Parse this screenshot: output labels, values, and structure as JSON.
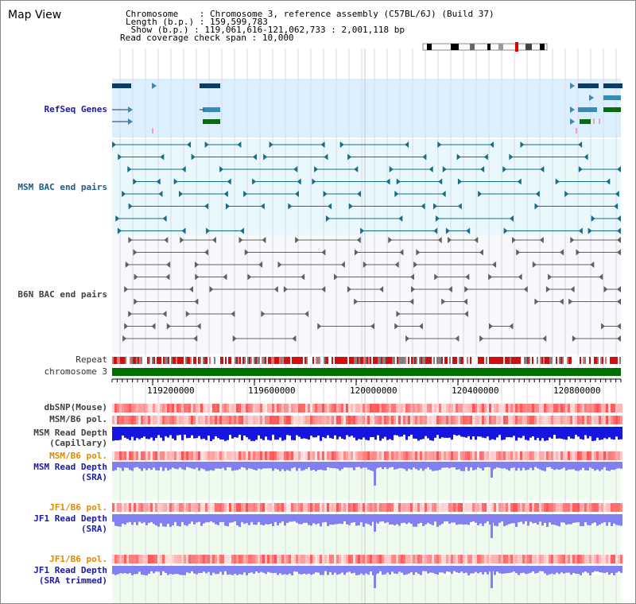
{
  "header": {
    "title": "Map View",
    "rows": [
      {
        "label": "Chromosome    ",
        "value": ": Chromosome 3, reference assembly (C57BL/6J) (Build 37)"
      },
      {
        "label": "Length (b.p.) ",
        "value": ": 159,599,783"
      },
      {
        "label": " Show (b.p.) ",
        "value": ": 119,061,616-121,062,733 : 2,001,118 bp"
      },
      {
        "label": "Read coverage check span ",
        "value": ": 10,000"
      }
    ]
  },
  "tracks": {
    "refseq": "RefSeq Genes",
    "msm_bac": "MSM BAC end pairs",
    "b6n_bac": "B6N BAC end pairs",
    "repeat": "Repeat",
    "chromosome": "chromosome 3",
    "dbsnp": "dbSNP(Mouse)",
    "msm_b6_pol": "MSM/B6 pol.",
    "msm_depth_cap_1": "MSM Read Depth",
    "msm_depth_cap_2": "(Capillary)",
    "msm_b6_pol_2": "MSM/B6 pol.",
    "msm_depth_sra_1": "MSM Read Depth",
    "msm_depth_sra_2": "(SRA)",
    "jf1_pol_1": "JF1/B6 pol.",
    "jf1_depth_1": "JF1 Read Depth",
    "jf1_depth_1b": "(SRA)",
    "jf1_pol_2": "JF1/B6 pol.",
    "jf1_depth_2": "JF1 Read Depth",
    "jf1_depth_2b": "(SRA trimmed)"
  },
  "axis": {
    "ticks": [
      "119200000",
      "119600000",
      "120000000",
      "120400000",
      "120800000"
    ]
  },
  "colors": {
    "refseq_bg": "#dcefff",
    "bac_bg": "#e8f8fc",
    "depth_bg": "#eefcee",
    "refseq_dark": "#0c3a6a",
    "refseq_mid": "#3a8ab8",
    "refseq_green": "#0a6a10",
    "msm_line": "#1b6a8a",
    "b6n_line": "#606060",
    "chrom": "#007000",
    "depth_cap": "#1515e0",
    "depth_sra": "#8080f0"
  }
}
